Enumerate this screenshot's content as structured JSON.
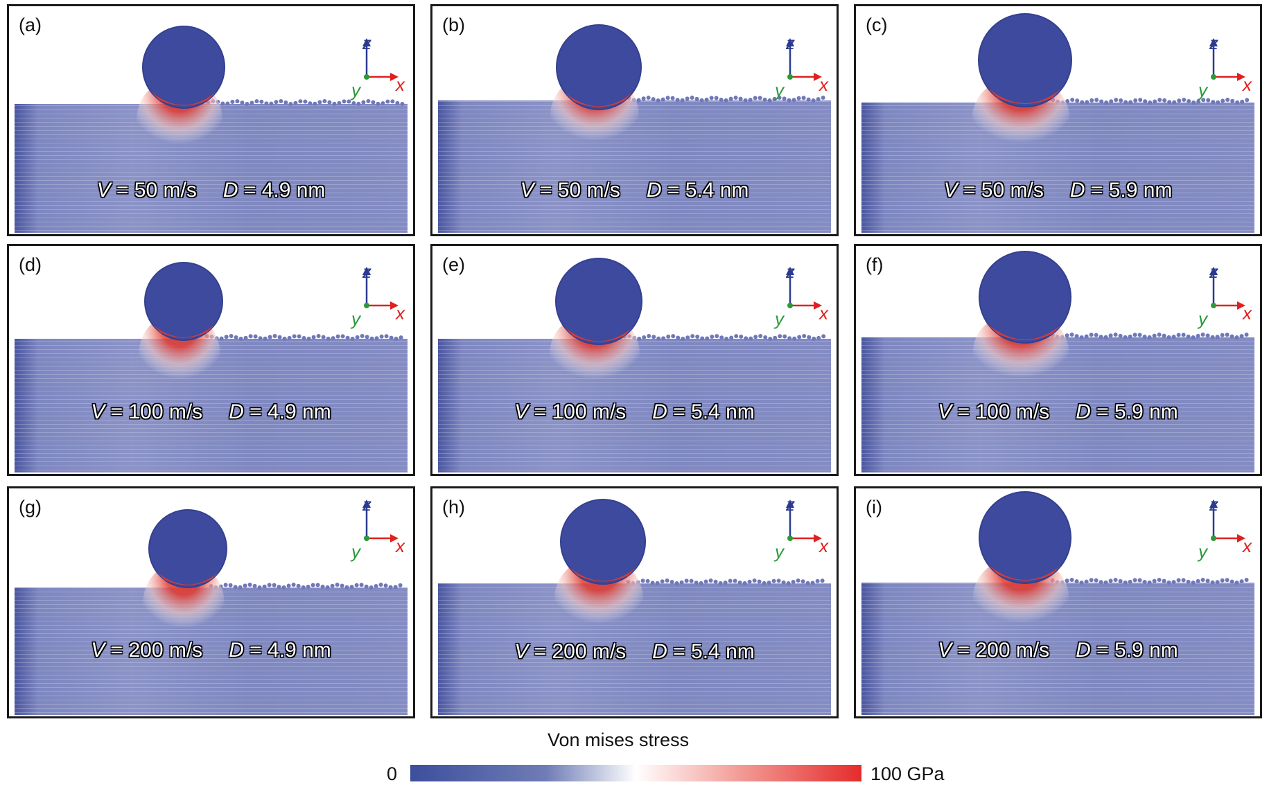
{
  "panels": [
    {
      "label": "(a)",
      "v_label": "V",
      "v_text": " = 50 m/s",
      "d_label": "D",
      "d_text": " = 4.9 nm"
    },
    {
      "label": "(b)",
      "v_label": "V",
      "v_text": " = 50 m/s",
      "d_label": "D",
      "d_text": " = 5.4 nm"
    },
    {
      "label": "(c)",
      "v_label": "V",
      "v_text": " = 50 m/s",
      "d_label": "D",
      "d_text": " = 5.9 nm"
    },
    {
      "label": "(d)",
      "v_label": "V",
      "v_text": " = 100 m/s",
      "d_label": "D",
      "d_text": " = 4.9 nm"
    },
    {
      "label": "(e)",
      "v_label": "V",
      "v_text": " = 100 m/s",
      "d_label": "D",
      "d_text": " = 5.4 nm"
    },
    {
      "label": "(f)",
      "v_label": "V",
      "v_text": " = 100 m/s",
      "d_label": "D",
      "d_text": " = 5.9 nm"
    },
    {
      "label": "(g)",
      "v_label": "V",
      "v_text": " = 200 m/s",
      "d_label": "D",
      "d_text": " = 4.9 nm"
    },
    {
      "label": "(h)",
      "v_label": "V",
      "v_text": " = 200 m/s",
      "d_label": "D",
      "d_text": " = 5.4 nm"
    },
    {
      "label": "(i)",
      "v_label": "V",
      "v_text": " = 200 m/s",
      "d_label": "D",
      "d_text": " = 5.9 nm"
    }
  ],
  "axes": {
    "z": "z",
    "x": "x",
    "y": "y"
  },
  "colorbar": {
    "title": "Von mises stress",
    "min_label": "0",
    "max_label": "100 GPa",
    "color_low": "#3c4f9c",
    "color_mid": "#ffffff",
    "color_high": "#e52b2b"
  },
  "colors": {
    "substrate": "#6f78b8",
    "particle": "#3d4a9e",
    "stress_high": "#e23b30",
    "axis_z": "#2b3a8f",
    "axis_x": "#e02020",
    "axis_y": "#2a9a3a"
  }
}
